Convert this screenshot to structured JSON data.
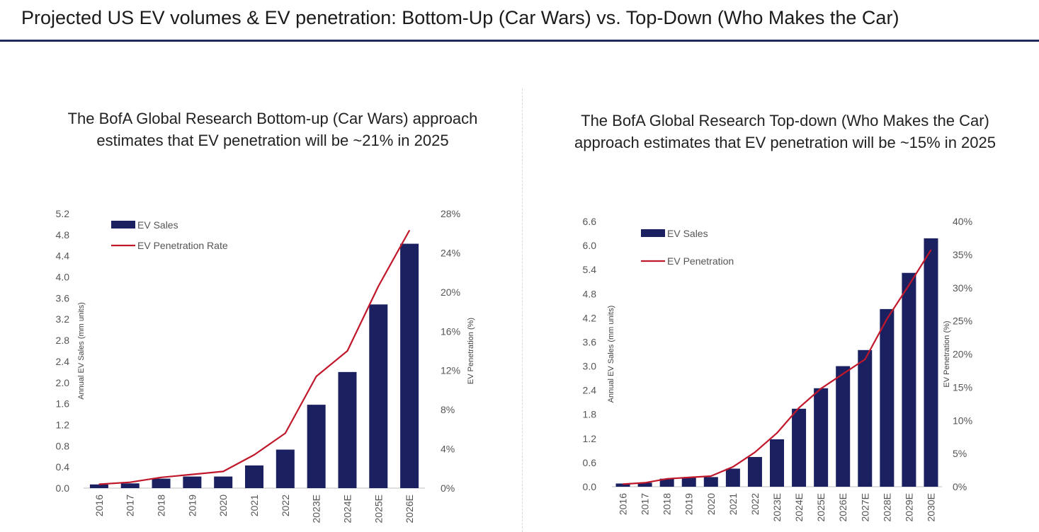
{
  "page": {
    "title": "Projected US EV volumes & EV penetration: Bottom-Up (Car Wars) vs. Top-Down (Who Makes the Car)"
  },
  "colors": {
    "bar": "#1b2060",
    "line": "#c0172b",
    "title_rule": "#1f2a5c"
  },
  "chart_data": [
    {
      "type": "bar",
      "heading_lines": [
        "The BofA Global Research Bottom-up (Car Wars) approach",
        "estimates that EV penetration will be ~21% in 2025"
      ],
      "categories": [
        "2016",
        "2017",
        "2018",
        "2019",
        "2020",
        "2021",
        "2022",
        "2023E",
        "2024E",
        "2025E",
        "2026E"
      ],
      "ylabel": "Annual EV Sales (mm units)",
      "y2label": "EV Penetration (%)",
      "ylim": [
        0,
        5.2
      ],
      "y_ticks": [
        "0.0",
        "0.4",
        "0.8",
        "1.2",
        "1.6",
        "2.0",
        "2.4",
        "2.8",
        "3.2",
        "3.6",
        "4.0",
        "4.4",
        "4.8",
        "5.2"
      ],
      "y2lim": [
        0,
        28
      ],
      "y2_ticks": [
        "0%",
        "4%",
        "8%",
        "12%",
        "16%",
        "20%",
        "24%",
        "28%"
      ],
      "legend_position": "top-left",
      "series": [
        {
          "name": "EV Sales",
          "kind": "bar",
          "axis": "left",
          "values": [
            0.07,
            0.09,
            0.18,
            0.22,
            0.22,
            0.43,
            0.73,
            1.58,
            2.2,
            3.48,
            4.63
          ]
        },
        {
          "name": "EV Penetration Rate",
          "kind": "line",
          "axis": "right",
          "values": [
            0.4,
            0.6,
            1.1,
            1.4,
            1.7,
            3.4,
            5.6,
            11.4,
            14.0,
            20.6,
            26.3
          ]
        }
      ]
    },
    {
      "type": "bar",
      "heading_lines": [
        "The BofA Global Research Top-down (Who Makes the Car)",
        "approach estimates that EV penetration will be ~15% in 2025"
      ],
      "categories": [
        "2016",
        "2017",
        "2018",
        "2019",
        "2020",
        "2021",
        "2022",
        "2023E",
        "2024E",
        "2025E",
        "2026E",
        "2027E",
        "2028E",
        "2029E",
        "2030E"
      ],
      "ylabel": "Annual EV Sales (mm units)",
      "y2label": "EV Penetration (%)",
      "ylim": [
        0,
        6.6
      ],
      "y_ticks": [
        "0.0",
        "0.6",
        "1.2",
        "1.8",
        "2.4",
        "3.0",
        "3.6",
        "4.2",
        "4.8",
        "5.4",
        "6.0",
        "6.6"
      ],
      "y2lim": [
        0,
        40
      ],
      "y2_ticks": [
        "0%",
        "5%",
        "10%",
        "15%",
        "20%",
        "25%",
        "30%",
        "35%",
        "40%"
      ],
      "legend_position": "top-left",
      "series": [
        {
          "name": "EV Sales",
          "kind": "bar",
          "axis": "left",
          "values": [
            0.08,
            0.1,
            0.2,
            0.22,
            0.24,
            0.45,
            0.74,
            1.18,
            1.94,
            2.45,
            3.0,
            3.4,
            4.42,
            5.32,
            6.18
          ]
        },
        {
          "name": "EV Penetration",
          "kind": "line",
          "axis": "right",
          "values": [
            0.4,
            0.6,
            1.2,
            1.4,
            1.6,
            3.0,
            5.2,
            8.1,
            11.9,
            14.8,
            17.0,
            19.2,
            25.3,
            30.4,
            35.7
          ]
        }
      ]
    }
  ]
}
